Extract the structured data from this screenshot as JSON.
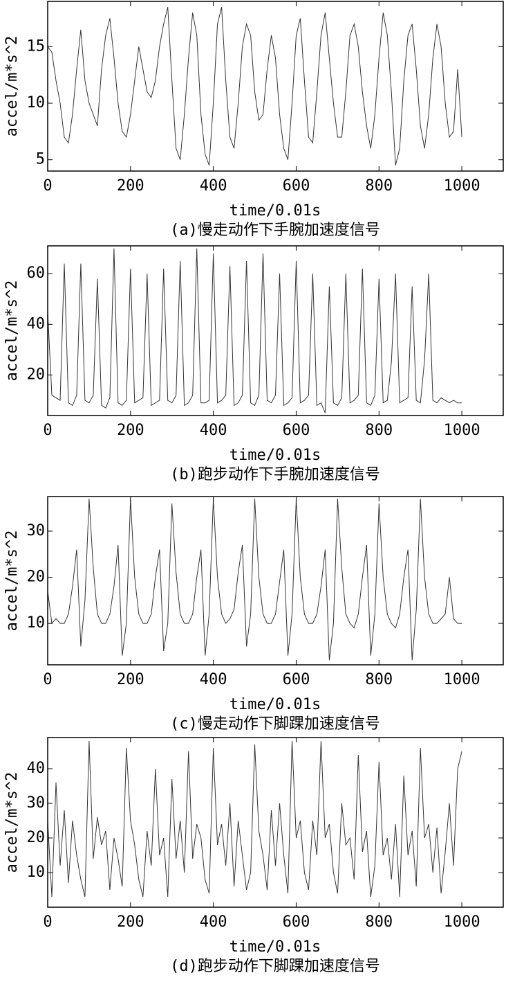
{
  "chart_data": [
    {
      "type": "line",
      "caption": "(a)慢走动作下手腕加速度信号",
      "xlabel": "time/0.01s",
      "ylabel": "accel/m*s^2",
      "color": "#333333",
      "xlim": [
        0,
        1100
      ],
      "ylim": [
        4,
        19
      ],
      "xticks": [
        0,
        200,
        400,
        600,
        800,
        1000
      ],
      "yticks": [
        5,
        10,
        15
      ],
      "x": [
        0,
        10,
        20,
        30,
        40,
        50,
        60,
        70,
        80,
        90,
        100,
        110,
        120,
        130,
        140,
        150,
        160,
        170,
        180,
        190,
        200,
        210,
        220,
        230,
        240,
        250,
        260,
        270,
        280,
        290,
        300,
        310,
        320,
        330,
        340,
        350,
        360,
        370,
        380,
        390,
        400,
        410,
        420,
        430,
        440,
        450,
        460,
        470,
        480,
        490,
        500,
        510,
        520,
        530,
        540,
        550,
        560,
        570,
        580,
        590,
        600,
        610,
        620,
        630,
        640,
        650,
        660,
        670,
        680,
        690,
        700,
        710,
        720,
        730,
        740,
        750,
        760,
        770,
        780,
        790,
        800,
        810,
        820,
        830,
        840,
        850,
        860,
        870,
        880,
        890,
        900,
        910,
        920,
        930,
        940,
        950,
        960,
        970,
        980,
        990,
        1000
      ],
      "values": [
        15,
        14.5,
        12,
        10,
        7,
        6.5,
        9,
        13,
        16.5,
        12,
        10,
        9,
        8,
        13,
        16,
        17.5,
        14,
        10,
        7.5,
        7,
        9,
        12,
        15,
        13,
        11,
        10.5,
        12,
        15,
        17,
        18.5,
        12,
        6,
        5,
        9,
        14,
        18,
        16,
        9,
        5.5,
        4.5,
        10,
        17,
        18.5,
        12,
        7,
        6,
        10,
        15,
        17,
        16,
        11,
        8.5,
        9,
        13,
        16,
        14,
        9,
        6,
        5,
        10,
        16,
        17.5,
        12,
        7,
        6.5,
        11,
        16,
        18,
        14,
        10,
        7,
        7,
        11,
        16,
        17,
        15,
        11,
        8,
        6,
        9,
        14,
        18,
        16,
        11,
        4.5,
        6,
        12,
        16,
        17,
        13,
        8,
        6,
        9,
        14,
        17,
        15,
        10,
        7,
        7.5,
        13,
        7
      ]
    },
    {
      "type": "line",
      "caption": "(b)跑步动作下手腕加速度信号",
      "xlabel": "time/0.01s",
      "ylabel": "accel/m*s^2",
      "color": "#333333",
      "xlim": [
        0,
        1100
      ],
      "ylim": [
        4,
        71
      ],
      "xticks": [
        0,
        200,
        400,
        600,
        800,
        1000
      ],
      "yticks": [
        20,
        40,
        60
      ],
      "x": [
        0,
        10,
        20,
        30,
        40,
        50,
        60,
        70,
        80,
        90,
        100,
        110,
        120,
        130,
        140,
        150,
        160,
        170,
        180,
        190,
        200,
        210,
        220,
        230,
        240,
        250,
        260,
        270,
        280,
        290,
        300,
        310,
        320,
        330,
        340,
        350,
        360,
        370,
        380,
        390,
        400,
        410,
        420,
        430,
        440,
        450,
        460,
        470,
        480,
        490,
        500,
        510,
        520,
        530,
        540,
        550,
        560,
        570,
        580,
        590,
        600,
        610,
        620,
        630,
        640,
        650,
        660,
        670,
        680,
        690,
        700,
        710,
        720,
        730,
        740,
        750,
        760,
        770,
        780,
        790,
        800,
        810,
        820,
        830,
        840,
        850,
        860,
        870,
        880,
        890,
        900,
        910,
        920,
        930,
        940,
        950,
        960,
        970,
        980,
        990,
        1000
      ],
      "values": [
        45,
        12,
        11,
        10,
        64,
        9,
        8,
        12,
        64,
        10,
        9,
        12,
        58,
        8,
        7,
        11,
        70,
        9,
        8,
        10,
        62,
        9,
        10,
        11,
        60,
        8,
        9,
        10,
        62,
        10,
        9,
        12,
        65,
        8,
        9,
        12,
        70,
        9,
        9,
        10,
        68,
        9,
        10,
        12,
        63,
        8,
        9,
        12,
        65,
        9,
        8,
        12,
        68,
        10,
        9,
        12,
        60,
        8,
        9,
        11,
        65,
        9,
        10,
        12,
        60,
        8,
        9,
        5,
        55,
        9,
        8,
        11,
        60,
        9,
        10,
        12,
        62,
        9,
        8,
        12,
        58,
        9,
        10,
        25,
        60,
        9,
        10,
        11,
        55,
        10,
        9,
        26,
        60,
        10,
        9,
        11,
        10,
        9,
        10,
        9,
        9
      ]
    },
    {
      "type": "line",
      "caption": "(c)慢走动作下脚踝加速度信号",
      "xlabel": "time/0.01s",
      "ylabel": "accel/m*s^2",
      "color": "#333333",
      "xlim": [
        0,
        1100
      ],
      "ylim": [
        1,
        37.5
      ],
      "xticks": [
        0,
        200,
        400,
        600,
        800,
        1000
      ],
      "yticks": [
        10,
        20,
        30
      ],
      "x": [
        0,
        10,
        20,
        30,
        40,
        50,
        60,
        70,
        80,
        90,
        100,
        110,
        120,
        130,
        140,
        150,
        160,
        170,
        180,
        190,
        200,
        210,
        220,
        230,
        240,
        250,
        260,
        270,
        280,
        290,
        300,
        310,
        320,
        330,
        340,
        350,
        360,
        370,
        380,
        390,
        400,
        410,
        420,
        430,
        440,
        450,
        460,
        470,
        480,
        490,
        500,
        510,
        520,
        530,
        540,
        550,
        560,
        570,
        580,
        590,
        600,
        610,
        620,
        630,
        640,
        650,
        660,
        670,
        680,
        690,
        700,
        710,
        720,
        730,
        740,
        750,
        760,
        770,
        780,
        790,
        800,
        810,
        820,
        830,
        840,
        850,
        860,
        870,
        880,
        890,
        900,
        910,
        920,
        930,
        940,
        950,
        960,
        970,
        980,
        990,
        1000
      ],
      "values": [
        17,
        10,
        11,
        10,
        10,
        12,
        18,
        26,
        5,
        15,
        37,
        22,
        12,
        10,
        10,
        12,
        18,
        27,
        3,
        10,
        37,
        20,
        12,
        10,
        10,
        12,
        20,
        26,
        4,
        10,
        36,
        21,
        12,
        10,
        10,
        12,
        20,
        26,
        3,
        12,
        37,
        20,
        12,
        10,
        11,
        13,
        21,
        27,
        5,
        12,
        37,
        20,
        12,
        10,
        10,
        12,
        19,
        26,
        3,
        12,
        37,
        20,
        12,
        10,
        10,
        12,
        18,
        26,
        2,
        10,
        37,
        22,
        12,
        10,
        9,
        12,
        20,
        27,
        3,
        12,
        36,
        20,
        12,
        10,
        9,
        12,
        20,
        26,
        2,
        13,
        37,
        20,
        12,
        10,
        10,
        11,
        12,
        20,
        11,
        10,
        10
      ]
    },
    {
      "type": "line",
      "caption": "(d)跑步动作下脚踝加速度信号",
      "xlabel": "time/0.01s",
      "ylabel": "accel/m*s^2",
      "color": "#333333",
      "xlim": [
        0,
        1100
      ],
      "ylim": [
        0,
        49
      ],
      "xticks": [
        0,
        200,
        400,
        600,
        800,
        1000
      ],
      "yticks": [
        10,
        20,
        30,
        40
      ],
      "x": [
        0,
        10,
        20,
        30,
        40,
        50,
        60,
        70,
        80,
        90,
        100,
        110,
        120,
        130,
        140,
        150,
        160,
        170,
        180,
        190,
        200,
        210,
        220,
        230,
        240,
        250,
        260,
        270,
        280,
        290,
        300,
        310,
        320,
        330,
        340,
        350,
        360,
        370,
        380,
        390,
        400,
        410,
        420,
        430,
        440,
        450,
        460,
        470,
        480,
        490,
        500,
        510,
        520,
        530,
        540,
        550,
        560,
        570,
        580,
        590,
        600,
        610,
        620,
        630,
        640,
        650,
        660,
        670,
        680,
        690,
        700,
        710,
        720,
        730,
        740,
        750,
        760,
        770,
        780,
        790,
        800,
        810,
        820,
        830,
        840,
        850,
        860,
        870,
        880,
        890,
        900,
        910,
        920,
        930,
        940,
        950,
        960,
        970,
        980,
        990,
        1000
      ],
      "values": [
        25,
        3,
        36,
        12,
        28,
        7,
        25,
        15,
        8,
        3,
        48,
        14,
        26,
        18,
        22,
        5,
        20,
        14,
        6,
        46,
        25,
        18,
        8,
        3,
        22,
        12,
        40,
        15,
        20,
        3,
        37,
        14,
        25,
        10,
        45,
        14,
        24,
        20,
        8,
        4,
        46,
        18,
        24,
        12,
        30,
        6,
        25,
        15,
        5,
        10,
        47,
        22,
        15,
        5,
        28,
        12,
        30,
        15,
        4,
        48,
        20,
        25,
        10,
        5,
        25,
        15,
        48,
        20,
        24,
        10,
        4,
        30,
        18,
        20,
        8,
        44,
        16,
        22,
        3,
        12,
        42,
        15,
        20,
        8,
        24,
        3,
        38,
        15,
        22,
        6,
        46,
        20,
        24,
        10,
        23,
        4,
        16,
        30,
        12,
        40,
        45
      ]
    }
  ]
}
